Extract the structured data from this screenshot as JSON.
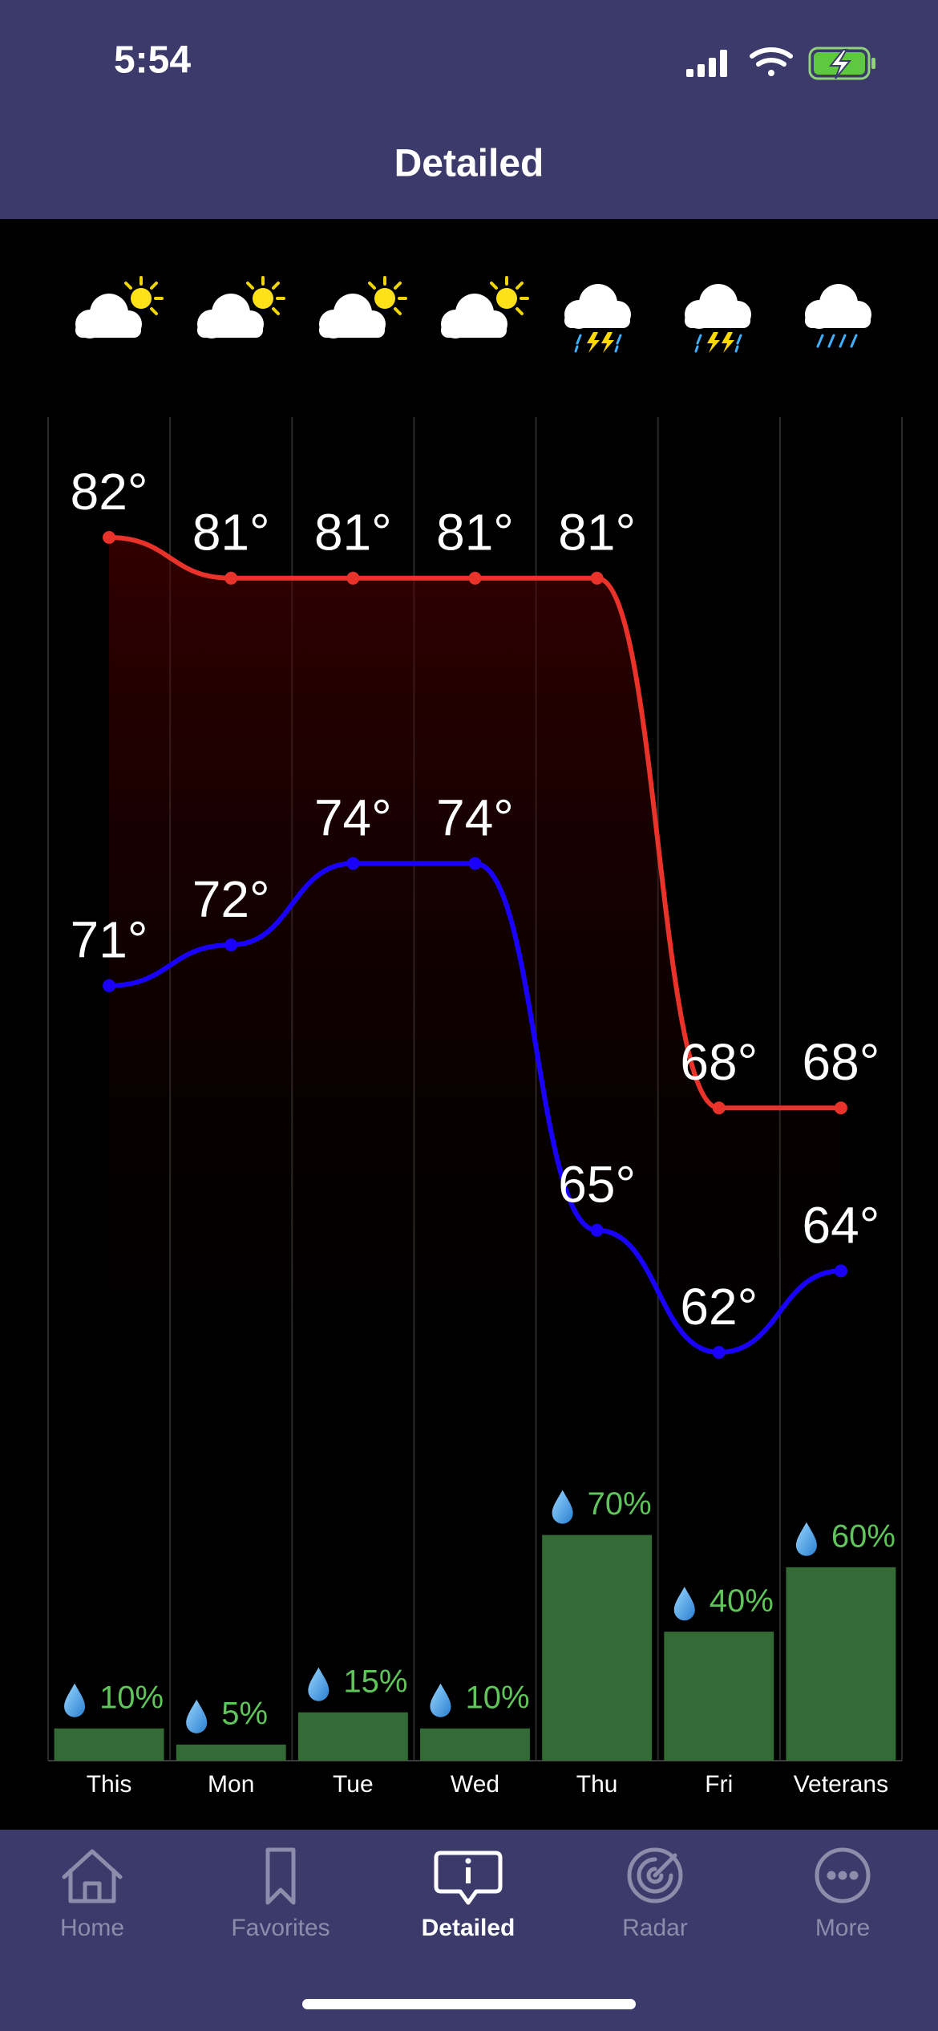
{
  "status": {
    "time": "5:54"
  },
  "header": {
    "title": "Detailed"
  },
  "chart_data": {
    "type": "line",
    "categories": [
      "This",
      "Mon",
      "Tue",
      "Wed",
      "Thu",
      "Fri",
      "Veterans"
    ],
    "series": [
      {
        "color": "#e8322a",
        "values": [
          82,
          81,
          81,
          81,
          81,
          68,
          68
        ],
        "value_labels": [
          "82°",
          "81°",
          "81°",
          "81°",
          "81°",
          "68°",
          "68°"
        ]
      },
      {
        "color": "#1a00ff",
        "values": [
          71,
          72,
          74,
          74,
          65,
          62,
          64
        ],
        "value_labels": [
          "71°",
          "72°",
          "74°",
          "74°",
          "65°",
          "62°",
          "64°"
        ]
      }
    ],
    "precipitation": {
      "type": "bar",
      "color": "#336a36",
      "label_color": "#5fc45a",
      "values": [
        10,
        5,
        15,
        10,
        70,
        40,
        60
      ],
      "value_labels": [
        "10%",
        "5%",
        "15%",
        "10%",
        "70%",
        "40%",
        "60%"
      ]
    }
  },
  "tabs": [
    "Home",
    "Favorites",
    "Detailed",
    "Radar",
    "More"
  ]
}
